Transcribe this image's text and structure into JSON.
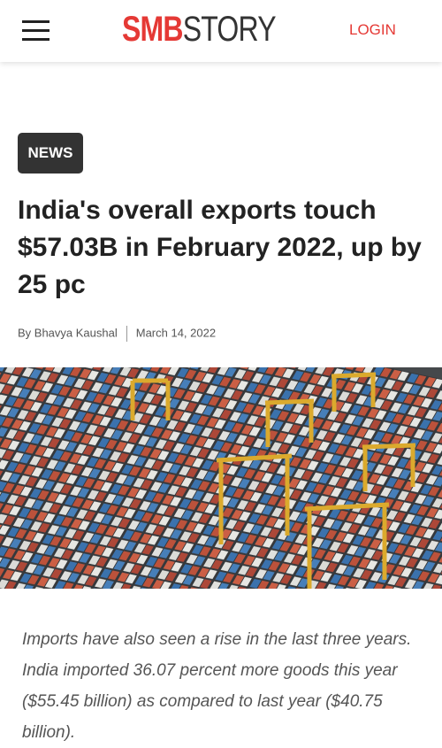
{
  "header": {
    "logo_bold": "SMB",
    "logo_light": "STORY",
    "login": "LOGIN"
  },
  "article": {
    "tag": "NEWS",
    "title": "India's overall exports touch $57.03B in February 2022, up by 25 pc",
    "author": "By Bhavya Kaushal",
    "date": "March 14, 2022",
    "excerpt": "Imports have also seen a rise in the last three years. India imported 36.07 percent more goods this year ($55.45 billion) as compared to last year ($40.75 billion)."
  }
}
